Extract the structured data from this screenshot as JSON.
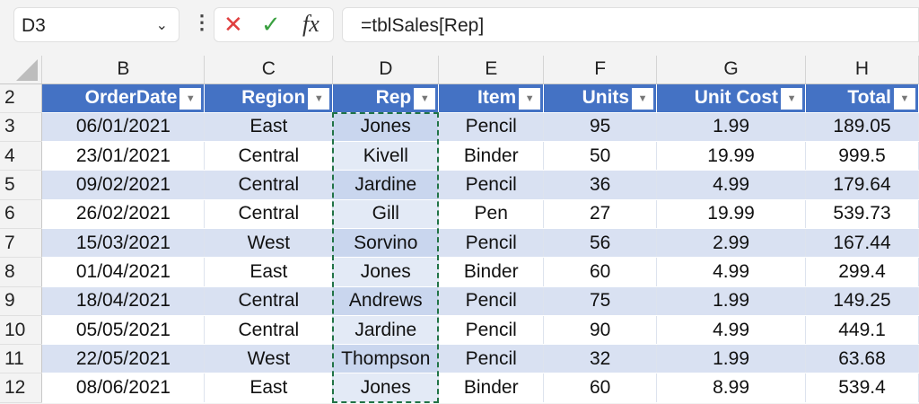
{
  "formula_bar": {
    "name_box": "D3",
    "formula": "=tblSales[Rep]",
    "cancel_icon": "✕",
    "enter_icon": "✓",
    "fx_label": "fx"
  },
  "columns": [
    "B",
    "C",
    "D",
    "E",
    "F",
    "G",
    "H"
  ],
  "table": {
    "headers": [
      "OrderDate",
      "Region",
      "Rep",
      "Item",
      "Units",
      "Unit Cost",
      "Total"
    ],
    "header_row": "2",
    "rows": [
      {
        "n": "3",
        "cells": [
          "06/01/2021",
          "East",
          "Jones",
          "Pencil",
          "95",
          "1.99",
          "189.05"
        ]
      },
      {
        "n": "4",
        "cells": [
          "23/01/2021",
          "Central",
          "Kivell",
          "Binder",
          "50",
          "19.99",
          "999.5"
        ]
      },
      {
        "n": "5",
        "cells": [
          "09/02/2021",
          "Central",
          "Jardine",
          "Pencil",
          "36",
          "4.99",
          "179.64"
        ]
      },
      {
        "n": "6",
        "cells": [
          "26/02/2021",
          "Central",
          "Gill",
          "Pen",
          "27",
          "19.99",
          "539.73"
        ]
      },
      {
        "n": "7",
        "cells": [
          "15/03/2021",
          "West",
          "Sorvino",
          "Pencil",
          "56",
          "2.99",
          "167.44"
        ]
      },
      {
        "n": "8",
        "cells": [
          "01/04/2021",
          "East",
          "Jones",
          "Binder",
          "60",
          "4.99",
          "299.4"
        ]
      },
      {
        "n": "9",
        "cells": [
          "18/04/2021",
          "Central",
          "Andrews",
          "Pencil",
          "75",
          "1.99",
          "149.25"
        ]
      },
      {
        "n": "10",
        "cells": [
          "05/05/2021",
          "Central",
          "Jardine",
          "Pencil",
          "90",
          "4.99",
          "449.1"
        ]
      },
      {
        "n": "11",
        "cells": [
          "22/05/2021",
          "West",
          "Thompson",
          "Pencil",
          "32",
          "1.99",
          "63.68"
        ]
      },
      {
        "n": "12",
        "cells": [
          "08/06/2021",
          "East",
          "Jones",
          "Binder",
          "60",
          "8.99",
          "539.4"
        ]
      }
    ]
  },
  "colors": {
    "header": "#4472c4",
    "band": "#d9e1f2",
    "selection": "#217346"
  }
}
